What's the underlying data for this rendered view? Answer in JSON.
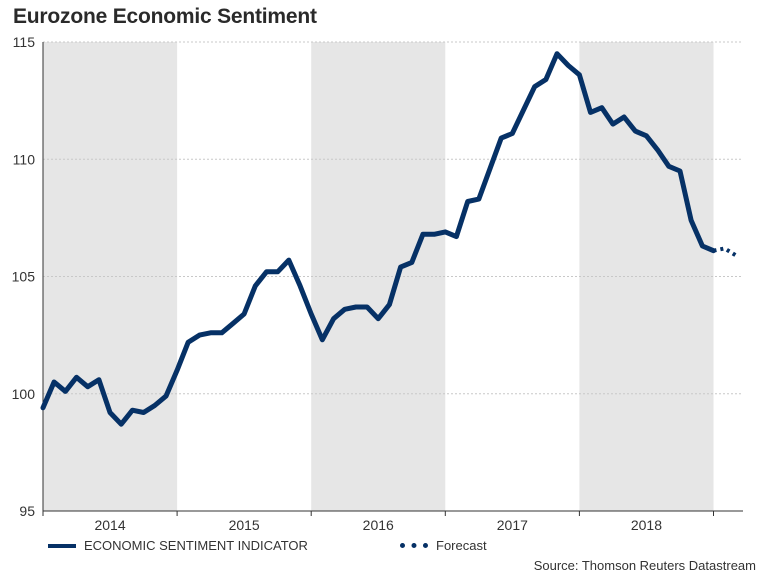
{
  "title": "Eurozone Economic Sentiment",
  "source": "Source: Thomson Reuters Datastream",
  "colors": {
    "series": "#063166",
    "band": "#e6e6e6",
    "grid": "#c8c8c8",
    "axis": "#333333"
  },
  "chart_data": {
    "type": "line",
    "title": "Eurozone Economic Sentiment",
    "xlabel": "",
    "ylabel": "",
    "ylim": [
      95,
      115
    ],
    "yticks": [
      95,
      100,
      105,
      110,
      115
    ],
    "categories": [
      "2014",
      "2015",
      "2016",
      "2017",
      "2018"
    ],
    "year_boundaries": [
      2014,
      2015,
      2016,
      2017,
      2018,
      2019
    ],
    "xlim": [
      2014,
      2019.22
    ],
    "shaded_years": [
      2014,
      2016,
      2018
    ],
    "series": [
      {
        "name": "ECONOMIC SENTIMENT INDICATOR",
        "style": "solid",
        "x": [
          2014.0,
          2014.083,
          2014.167,
          2014.25,
          2014.333,
          2014.417,
          2014.5,
          2014.583,
          2014.667,
          2014.75,
          2014.833,
          2014.917,
          2015.0,
          2015.083,
          2015.167,
          2015.25,
          2015.333,
          2015.417,
          2015.5,
          2015.583,
          2015.667,
          2015.75,
          2015.833,
          2015.917,
          2016.0,
          2016.083,
          2016.167,
          2016.25,
          2016.333,
          2016.417,
          2016.5,
          2016.583,
          2016.667,
          2016.75,
          2016.833,
          2016.917,
          2017.0,
          2017.083,
          2017.167,
          2017.25,
          2017.333,
          2017.417,
          2017.5,
          2017.583,
          2017.667,
          2017.75,
          2017.833,
          2017.917,
          2018.0,
          2018.083,
          2018.167,
          2018.25,
          2018.333,
          2018.417,
          2018.5,
          2018.583,
          2018.667,
          2018.75,
          2018.833,
          2018.917,
          2019.0
        ],
        "values": [
          99.4,
          100.5,
          100.1,
          100.7,
          100.3,
          100.6,
          99.2,
          98.7,
          99.3,
          99.2,
          99.5,
          99.9,
          101.0,
          102.2,
          102.5,
          102.6,
          102.6,
          103.0,
          103.4,
          104.6,
          105.2,
          105.2,
          105.7,
          104.6,
          103.4,
          102.3,
          103.2,
          103.6,
          103.7,
          103.7,
          103.2,
          103.8,
          105.4,
          105.6,
          106.8,
          106.8,
          106.9,
          106.7,
          108.2,
          108.3,
          109.6,
          110.9,
          111.1,
          112.1,
          113.1,
          113.4,
          114.5,
          114.0,
          113.6,
          112.0,
          112.2,
          111.5,
          111.8,
          111.2,
          111.0,
          110.4,
          109.7,
          109.5,
          107.4,
          106.3,
          106.1
        ]
      },
      {
        "name": "Forecast",
        "style": "dotted",
        "x": [
          2019.0,
          2019.083,
          2019.167
        ],
        "values": [
          106.1,
          106.2,
          105.9
        ]
      }
    ]
  }
}
